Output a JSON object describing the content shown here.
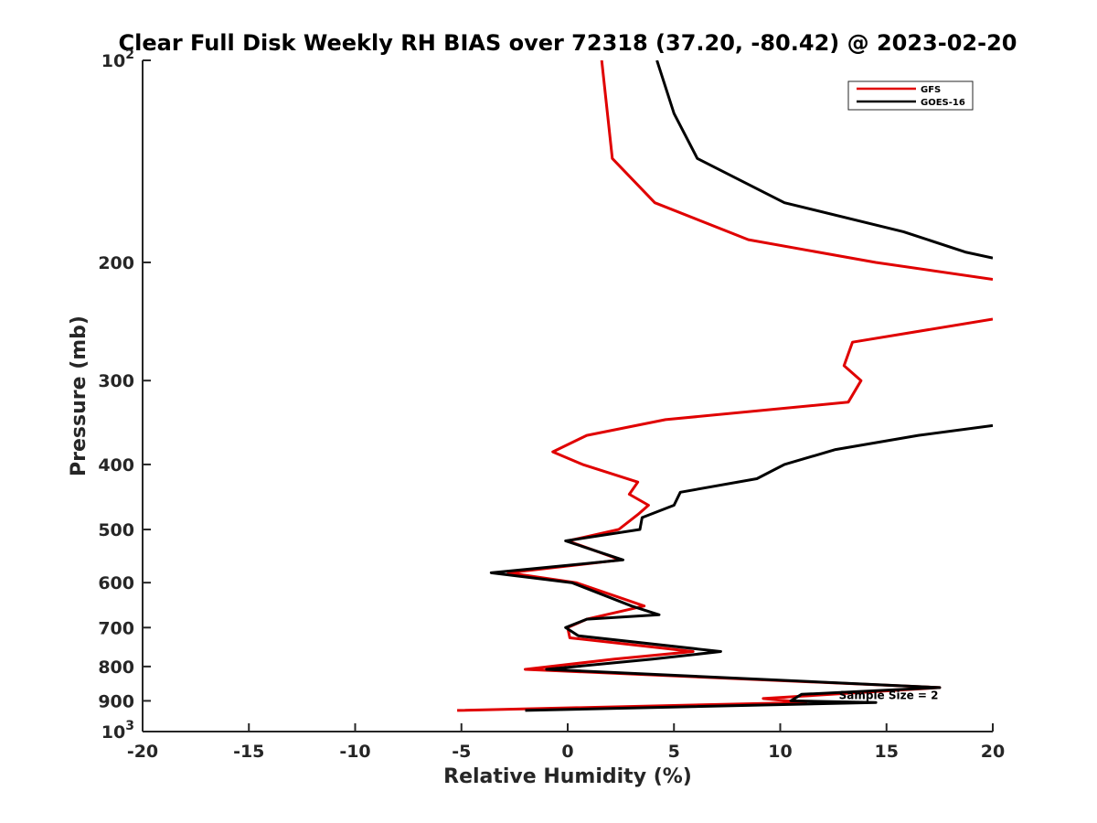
{
  "chart_data": {
    "type": "line",
    "title": "Clear Full Disk Weekly RH BIAS over 72318 (37.20, -80.42) @ 2023-02-20",
    "xlabel": "Relative Humidity (%)",
    "ylabel": "Pressure (mb)",
    "xlim": [
      -20,
      20
    ],
    "ylim": [
      1000,
      100
    ],
    "y_scale": "log",
    "y_inverted": true,
    "grid": false,
    "legend_position": "top-right",
    "x_ticks": [
      {
        "value": -20,
        "label": "-20"
      },
      {
        "value": -15,
        "label": "-15"
      },
      {
        "value": -10,
        "label": "-10"
      },
      {
        "value": -5,
        "label": "-5"
      },
      {
        "value": 0,
        "label": "0"
      },
      {
        "value": 5,
        "label": "5"
      },
      {
        "value": 10,
        "label": "10"
      },
      {
        "value": 15,
        "label": "15"
      },
      {
        "value": 20,
        "label": "20"
      }
    ],
    "y_ticks": [
      {
        "value": 100,
        "base": "10",
        "exp": "2"
      },
      {
        "value": 200,
        "label": "200"
      },
      {
        "value": 300,
        "label": "300"
      },
      {
        "value": 400,
        "label": "400"
      },
      {
        "value": 500,
        "label": "500"
      },
      {
        "value": 600,
        "label": "600"
      },
      {
        "value": 700,
        "label": "700"
      },
      {
        "value": 800,
        "label": "800"
      },
      {
        "value": 900,
        "label": "900"
      },
      {
        "value": 1000,
        "base": "10",
        "exp": "3"
      }
    ],
    "series": [
      {
        "name": "GFS",
        "color": "#e00000",
        "points": [
          [
            1.6,
            100
          ],
          [
            2.1,
            140
          ],
          [
            4.1,
            163
          ],
          [
            8.5,
            185
          ],
          [
            14.5,
            200
          ],
          [
            20.0,
            212
          ],
          [
            null,
            null
          ],
          [
            20.0,
            243
          ],
          [
            13.4,
            263
          ],
          [
            13.0,
            285
          ],
          [
            13.8,
            300
          ],
          [
            13.2,
            323
          ],
          [
            4.6,
            343
          ],
          [
            0.9,
            362
          ],
          [
            -0.7,
            383
          ],
          [
            0.7,
            400
          ],
          [
            3.3,
            425
          ],
          [
            2.9,
            443
          ],
          [
            3.8,
            460
          ],
          [
            3.3,
            475
          ],
          [
            2.4,
            500
          ],
          [
            0.0,
            520
          ],
          [
            2.5,
            555
          ],
          [
            -2.8,
            580
          ],
          [
            0.4,
            600
          ],
          [
            3.6,
            650
          ],
          [
            0.9,
            680
          ],
          [
            0.0,
            700
          ],
          [
            0.1,
            725
          ],
          [
            5.9,
            760
          ],
          [
            2.2,
            780
          ],
          [
            -2.0,
            808
          ],
          [
            17.5,
            860
          ],
          [
            9.2,
            893
          ],
          [
            11.2,
            905
          ],
          [
            -5.2,
            930
          ]
        ]
      },
      {
        "name": "GOES-16",
        "color": "#000000",
        "points": [
          [
            4.2,
            100
          ],
          [
            5.0,
            120
          ],
          [
            6.1,
            140
          ],
          [
            10.2,
            163
          ],
          [
            15.8,
            180
          ],
          [
            18.7,
            193
          ],
          [
            20.0,
            197
          ],
          [
            null,
            null
          ],
          [
            20.0,
            350
          ],
          [
            16.5,
            362
          ],
          [
            12.6,
            380
          ],
          [
            10.2,
            400
          ],
          [
            8.9,
            420
          ],
          [
            5.3,
            440
          ],
          [
            5.0,
            460
          ],
          [
            3.5,
            480
          ],
          [
            3.4,
            500
          ],
          [
            -0.1,
            520
          ],
          [
            2.6,
            555
          ],
          [
            -3.6,
            580
          ],
          [
            0.2,
            600
          ],
          [
            3.0,
            650
          ],
          [
            4.3,
            670
          ],
          [
            0.9,
            680
          ],
          [
            -0.1,
            700
          ],
          [
            0.5,
            720
          ],
          [
            7.2,
            760
          ],
          [
            4.0,
            780
          ],
          [
            -1.0,
            808
          ],
          [
            17.5,
            860
          ],
          [
            11.0,
            880
          ],
          [
            10.5,
            900
          ],
          [
            14.5,
            905
          ],
          [
            -2.0,
            930
          ]
        ]
      }
    ],
    "annotations": [
      {
        "text": "Sample Size = 2",
        "x": 15.1,
        "y": 895
      }
    ]
  }
}
